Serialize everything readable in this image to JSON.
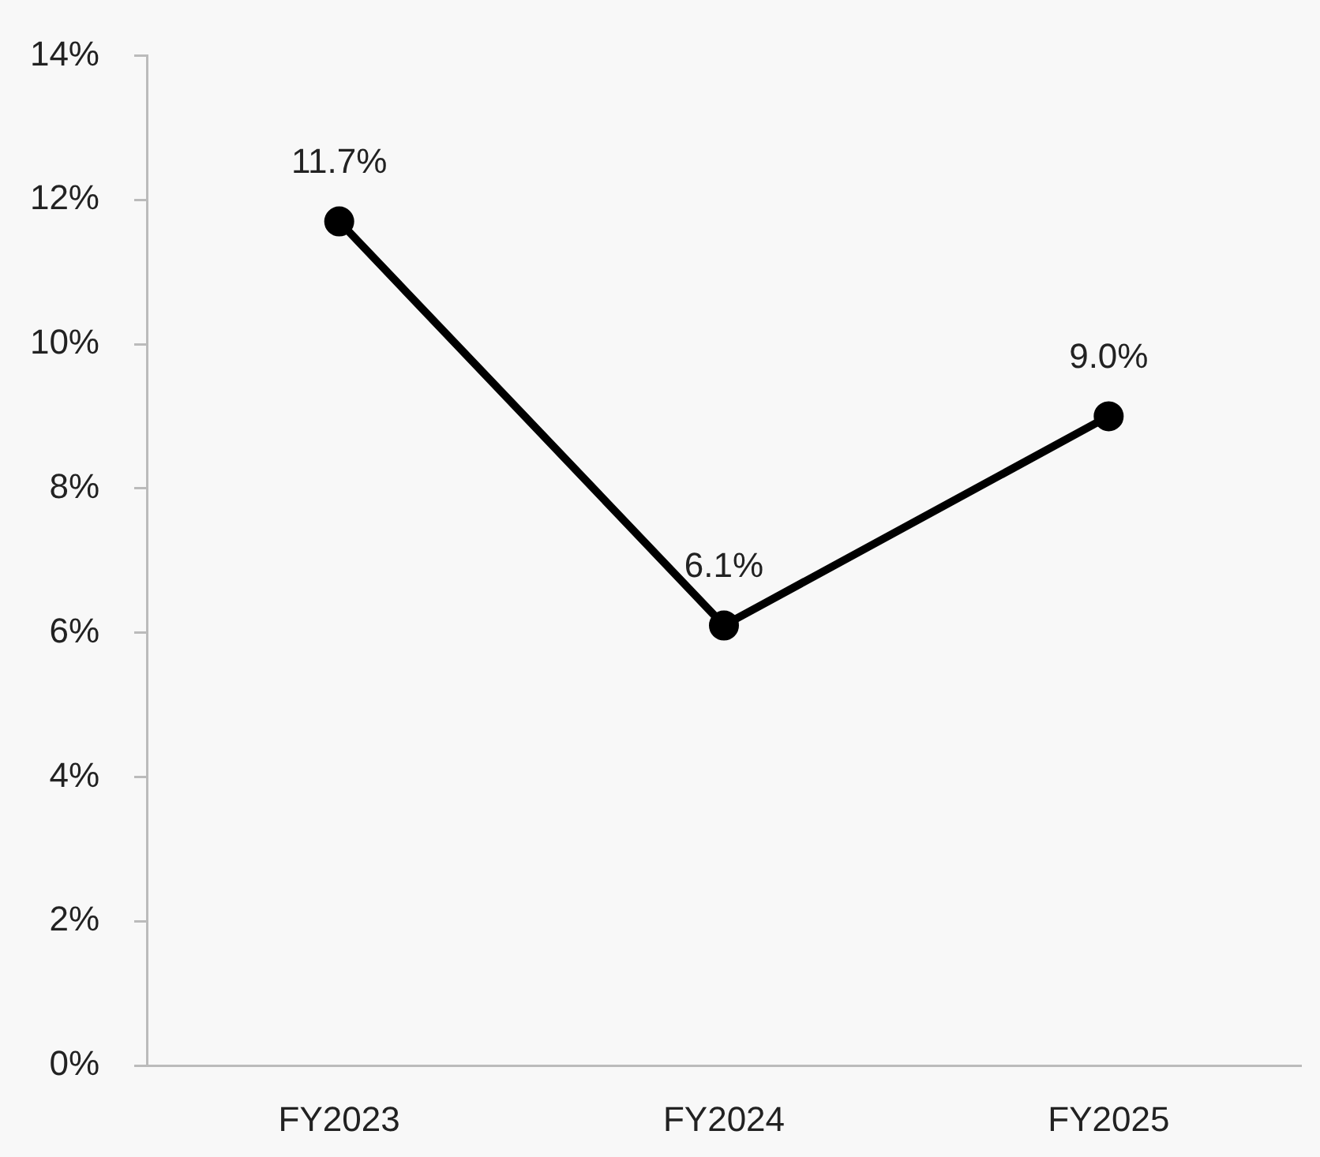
{
  "chart_data": {
    "type": "line",
    "categories": [
      "FY2023",
      "FY2024",
      "FY2025"
    ],
    "series": [
      {
        "color": "#000000",
        "values": [
          11.7,
          6.1,
          9.0
        ],
        "value_labels": [
          "11.7%",
          "6.1%",
          "9.0%"
        ]
      }
    ],
    "ylim": [
      0,
      14
    ],
    "yticks": [
      {
        "value": 0,
        "label": "0%"
      },
      {
        "value": 2,
        "label": "2%"
      },
      {
        "value": 4,
        "label": "4%"
      },
      {
        "value": 6,
        "label": "6%"
      },
      {
        "value": 8,
        "label": "8%"
      },
      {
        "value": 10,
        "label": "10%"
      },
      {
        "value": 12,
        "label": "12%"
      },
      {
        "value": 14,
        "label": "14%"
      }
    ],
    "marker": "circle",
    "line_style": "solid"
  }
}
